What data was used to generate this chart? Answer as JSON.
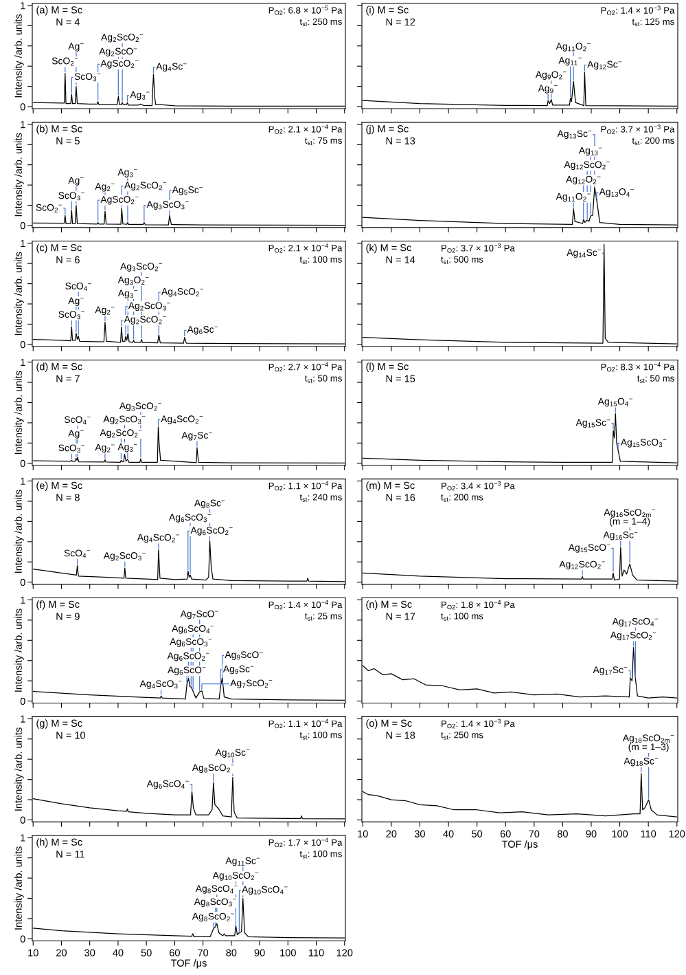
{
  "chart_data": [
    {
      "type": "line",
      "title": "(a) M = Sc",
      "subtitle": "N = 4",
      "ylabel": "Intensity /arb. units",
      "tick_labels": "y",
      "xlim": [
        9.7,
        120.3
      ],
      "ylim": [
        -0.02,
        1.02
      ],
      "xticks": [
        10,
        20,
        30,
        40,
        50,
        60,
        70,
        80,
        90,
        100,
        110,
        120
      ],
      "yticks": [
        0,
        {
          "value": 0.2,
          "label": null
        },
        {
          "value": 0.4,
          "label": null
        },
        {
          "value": 0.6,
          "label": null
        },
        {
          "value": 0.8,
          "label": null
        },
        1
      ],
      "annotations": [
        "P$_{O2}$: 6.8 × 10$^{−5}$ Pa",
        "t$_{st}$: 250 ms",
        {
          "text": "ScO$_{2}$$^{−}$",
          "x": 21.3,
          "y": 0.33
        },
        {
          "text": "ScO$_{3}$$^{−}$",
          "x": 23.6,
          "y": 0.12
        },
        {
          "text": "Ag$^{−}$",
          "x": 25.2,
          "y": 0.2
        },
        {
          "text": "AgScO$_{2}$$^{−}$",
          "x": 32.9,
          "y": 0.05
        },
        {
          "text": "Ag$_{2}$ScO$^{−}$",
          "x": 40.1,
          "y": 0.1
        },
        {
          "text": "Ag$_{2}$ScO$_{2}$$^{−}$",
          "x": 41.5,
          "y": 0.04
        },
        {
          "text": "Ag$_{3}$$^{−}$",
          "x": 43.3,
          "y": 0.04
        },
        {
          "text": "Ag$_{4}$Sc$^{−}$",
          "x": 52.5,
          "y": 0.32
        }
      ],
      "series": [
        {
          "color": "#000000",
          "x": [
            10,
            20,
            21.0,
            21.3,
            21.6,
            23.3,
            23.6,
            23.9,
            24.9,
            25.2,
            25.6,
            30,
            32.6,
            32.9,
            33.2,
            35,
            39.7,
            40.1,
            40.5,
            41.2,
            41.5,
            41.8,
            43.0,
            43.3,
            43.6,
            47,
            48,
            49,
            52.0,
            52.5,
            53.0,
            53.3,
            55,
            60,
            80,
            100,
            120
          ],
          "values": [
            0.04,
            0.035,
            0.035,
            0.33,
            0.03,
            0.03,
            0.12,
            0.03,
            0.03,
            0.2,
            0.03,
            0.025,
            0.025,
            0.05,
            0.02,
            0.02,
            0.02,
            0.1,
            0.02,
            0.02,
            0.04,
            0.02,
            0.02,
            0.04,
            0.015,
            0.015,
            0.025,
            0.012,
            0.01,
            0.32,
            0.08,
            0.02,
            0.02,
            0.008,
            0.005,
            0.005,
            0.004
          ]
        }
      ]
    },
    {
      "type": "line",
      "title": "(b) M = Sc",
      "subtitle": "N = 5",
      "ylabel": "Intensity /arb. units",
      "tick_labels": "y",
      "xlim": [
        9.7,
        120.3
      ],
      "ylim": [
        -0.02,
        1.02
      ],
      "xticks": [
        10,
        20,
        30,
        40,
        50,
        60,
        70,
        80,
        90,
        100,
        110,
        120
      ],
      "yticks": [
        0,
        {
          "value": 0.2,
          "label": null
        },
        {
          "value": 0.4,
          "label": null
        },
        {
          "value": 0.6,
          "label": null
        },
        {
          "value": 0.8,
          "label": null
        },
        1
      ],
      "annotations": [
        "P$_{O2}$: 2.1 × 10$^{−4}$ Pa",
        "t$_{st}$: 75 ms",
        {
          "text": "ScO$_{2}$$^{−}$",
          "x": 21.3,
          "y": 0.1
        },
        {
          "text": "ScO$_{3}$$^{−}$",
          "x": 23.6,
          "y": 0.15
        },
        {
          "text": "Ag$^{−}$",
          "x": 25.2,
          "y": 0.2
        },
        {
          "text": "AgScO$_{2}$$^{−}$",
          "x": 32.9,
          "y": 0.03
        },
        {
          "text": "Ag$_{2}$$^{−}$",
          "x": 35.4,
          "y": 0.14
        },
        {
          "text": "Ag$_{2}$ScO$_{2}$$^{−}$",
          "x": 41.3,
          "y": 0.17
        },
        {
          "text": "Ag$_{3}$$^{−}$",
          "x": 43.4,
          "y": 0.03
        },
        {
          "text": "Ag$_{3}$ScO$_{3}$$^{−}$",
          "x": 49.2,
          "y": 0.03
        },
        {
          "text": "Ag$_{5}$Sc$^{−}$",
          "x": 58.2,
          "y": 0.1
        }
      ],
      "series": [
        {
          "color": "#000000",
          "x": [
            10,
            20,
            21.0,
            21.3,
            21.6,
            23.3,
            23.6,
            23.9,
            24.9,
            25.2,
            25.6,
            32.6,
            32.9,
            33.2,
            35.1,
            35.4,
            35.8,
            41.0,
            41.3,
            41.7,
            43.1,
            43.4,
            43.7,
            48.9,
            49.2,
            49.6,
            57.8,
            58.2,
            58.8,
            70,
            120
          ],
          "values": [
            0.025,
            0.022,
            0.022,
            0.1,
            0.02,
            0.02,
            0.15,
            0.02,
            0.02,
            0.2,
            0.02,
            0.015,
            0.03,
            0.015,
            0.015,
            0.14,
            0.015,
            0.012,
            0.17,
            0.015,
            0.012,
            0.03,
            0.01,
            0.01,
            0.03,
            0.008,
            0.006,
            0.1,
            0.01,
            0.005,
            0.003
          ]
        }
      ]
    },
    {
      "type": "line",
      "title": "(c) M = Sc",
      "subtitle": "N = 6",
      "ylabel": "Intensity /arb. units",
      "tick_labels": "y",
      "xlim": [
        9.7,
        120.3
      ],
      "ylim": [
        -0.02,
        1.02
      ],
      "xticks": [
        10,
        20,
        30,
        40,
        50,
        60,
        70,
        80,
        90,
        100,
        110,
        120
      ],
      "yticks": [
        0,
        {
          "value": 0.2,
          "label": null
        },
        {
          "value": 0.4,
          "label": null
        },
        {
          "value": 0.6,
          "label": null
        },
        {
          "value": 0.8,
          "label": null
        },
        1
      ],
      "annotations": [
        "P$_{O2}$: 2.1 × 10$^{−4}$ Pa",
        "t$_{st}$: 100 ms",
        {
          "text": "ScO$_{3}$$^{−}$",
          "x": 23.6,
          "y": 0.175
        },
        {
          "text": "Ag$^{−}$",
          "x": 25.2,
          "y": 0.11
        },
        {
          "text": "ScO$_{4}$$^{−}$",
          "x": 26.0,
          "y": 0.08
        },
        {
          "text": "Ag$_{2}$$^{−}$",
          "x": 35.4,
          "y": 0.22
        },
        {
          "text": "Ag$_{2}$ScO$_{2}$$^{−}$",
          "x": 41.2,
          "y": 0.17
        },
        {
          "text": "Ag$_{2}$ScO$_{3}$$^{−}$",
          "x": 42.7,
          "y": 0.08
        },
        {
          "text": "Ag$_{3}$$^{−}$",
          "x": 43.5,
          "y": 0.11
        },
        {
          "text": "Ag$_{3}$O$_{2}$$^{−}$",
          "x": 45.5,
          "y": 0.04
        },
        {
          "text": "Ag$_{3}$ScO$_{2}$$^{−}$",
          "x": 48.3,
          "y": 0.05
        },
        {
          "text": "Ag$_{4}$ScO$_{2}$$^{−}$",
          "x": 54.4,
          "y": 0.095
        },
        {
          "text": "Ag$_{6}$Sc$^{−}$",
          "x": 63.5,
          "y": 0.07
        }
      ],
      "series": [
        {
          "color": "#000000",
          "x": [
            10,
            20,
            23.3,
            23.6,
            23.9,
            24.9,
            25.2,
            25.6,
            26.0,
            26.4,
            35.0,
            35.4,
            35.9,
            40.9,
            41.2,
            41.6,
            42.4,
            42.7,
            43.1,
            43.5,
            43.9,
            45.2,
            45.5,
            45.8,
            48.0,
            48.3,
            48.6,
            54.0,
            54.4,
            54.9,
            63.1,
            63.5,
            64.1,
            80,
            120
          ],
          "values": [
            0.05,
            0.04,
            0.035,
            0.175,
            0.04,
            0.04,
            0.11,
            0.05,
            0.08,
            0.03,
            0.025,
            0.22,
            0.03,
            0.02,
            0.17,
            0.03,
            0.03,
            0.08,
            0.04,
            0.11,
            0.025,
            0.02,
            0.04,
            0.02,
            0.02,
            0.05,
            0.018,
            0.015,
            0.095,
            0.015,
            0.012,
            0.07,
            0.012,
            0.008,
            0.005
          ]
        }
      ]
    },
    {
      "type": "line",
      "title": "(d) M = Sc",
      "subtitle": "N = 7",
      "ylabel": "Intensity /arb. units",
      "tick_labels": "y",
      "xlim": [
        9.7,
        120.3
      ],
      "ylim": [
        -0.02,
        1.02
      ],
      "xticks": [
        10,
        20,
        30,
        40,
        50,
        60,
        70,
        80,
        90,
        100,
        110,
        120
      ],
      "yticks": [
        0,
        {
          "value": 0.2,
          "label": null
        },
        {
          "value": 0.4,
          "label": null
        },
        {
          "value": 0.6,
          "label": null
        },
        {
          "value": 0.8,
          "label": null
        },
        1
      ],
      "annotations": [
        "P$_{O2}$: 2.7 × 10$^{−4}$ Pa",
        "t$_{st}$: 50 ms",
        {
          "text": "ScO$_{3}$$^{−}$",
          "x": 23.6,
          "y": 0.03
        },
        {
          "text": "Ag$^{−}$",
          "x": 25.2,
          "y": 0.05
        },
        {
          "text": "ScO$_{4}$$^{−}$",
          "x": 25.7,
          "y": 0.06
        },
        {
          "text": "Ag$_{2}$$^{−}$",
          "x": 35.4,
          "y": 0.035
        },
        {
          "text": "Ag$_{2}$ScO$_{2}$$^{−}$",
          "x": 41.1,
          "y": 0.03
        },
        {
          "text": "Ag$_{2}$ScO$_{3}$$^{−}$",
          "x": 42.3,
          "y": 0.09
        },
        {
          "text": "Ag$_{3}$$^{−}$",
          "x": 43.4,
          "y": 0.04
        },
        {
          "text": "Ag$_{3}$ScO$_{2}$$^{−}$",
          "x": 48.0,
          "y": 0.045
        },
        {
          "text": "Ag$_{4}$ScO$_{2}$$^{−}$",
          "x": 54.2,
          "y": 0.36
        },
        {
          "text": "Ag$_{7}$Sc$^{−}$",
          "x": 67.9,
          "y": 0.155
        }
      ],
      "series": [
        {
          "color": "#000000",
          "x": [
            10,
            23.3,
            23.6,
            23.9,
            24.9,
            25.2,
            25.5,
            25.7,
            26.1,
            35.1,
            35.4,
            35.7,
            40.8,
            41.1,
            41.5,
            42.0,
            42.3,
            42.8,
            43.4,
            43.8,
            47.7,
            48.0,
            48.3,
            53.9,
            54.2,
            54.5,
            55.0,
            67.6,
            67.9,
            68.4,
            80,
            120
          ],
          "values": [
            0.025,
            0.02,
            0.03,
            0.02,
            0.02,
            0.05,
            0.03,
            0.06,
            0.015,
            0.012,
            0.035,
            0.012,
            0.01,
            0.03,
            0.015,
            0.015,
            0.09,
            0.02,
            0.04,
            0.01,
            0.01,
            0.045,
            0.01,
            0.01,
            0.36,
            0.2,
            0.03,
            0.006,
            0.155,
            0.01,
            0.005,
            0.003
          ]
        }
      ]
    },
    {
      "type": "line",
      "title": "(e) M = Sc",
      "subtitle": "N = 8",
      "ylabel": "Intensity /arb. units",
      "tick_labels": "y",
      "xlim": [
        9.7,
        120.3
      ],
      "ylim": [
        -0.02,
        1.02
      ],
      "xticks": [
        10,
        20,
        30,
        40,
        50,
        60,
        70,
        80,
        90,
        100,
        110,
        120
      ],
      "yticks": [
        0,
        {
          "value": 0.2,
          "label": null
        },
        {
          "value": 0.4,
          "label": null
        },
        {
          "value": 0.6,
          "label": null
        },
        {
          "value": 0.8,
          "label": null
        },
        1
      ],
      "annotations": [
        "P$_{O2}$: 1.1 × 10$^{−4}$ Pa",
        "t$_{st}$: 240 ms",
        {
          "text": "ScO$_{4}$$^{−}$",
          "x": 25.6,
          "y": 0.165
        },
        {
          "text": "Ag$_{2}$ScO$_{3}$$^{−}$",
          "x": 42.4,
          "y": 0.14
        },
        {
          "text": "Ag$_{4}$ScO$_{2}$$^{−}$",
          "x": 54.3,
          "y": 0.32
        },
        {
          "text": "Ag$_{6}$ScO$_{2}$$^{−}$",
          "x": 64.7,
          "y": 0.11
        },
        {
          "text": "Ag$_{6}$ScO$_{3}$$^{−}$",
          "x": 65.5,
          "y": 0.07
        },
        {
          "text": "Ag$_{8}$Sc$^{−}$",
          "x": 72.4,
          "y": 0.41
        }
      ],
      "series": [
        {
          "color": "#000000",
          "x": [
            10,
            20,
            25.3,
            25.6,
            26.0,
            35,
            42.1,
            42.4,
            42.7,
            50,
            54.0,
            54.3,
            54.8,
            60,
            64.4,
            64.7,
            65.1,
            65.5,
            66.0,
            71,
            72.0,
            72.4,
            72.9,
            73.5,
            80,
            100,
            106.7,
            107,
            107.3,
            120
          ],
          "values": [
            0.13,
            0.09,
            0.07,
            0.165,
            0.06,
            0.05,
            0.04,
            0.14,
            0.04,
            0.03,
            0.025,
            0.32,
            0.04,
            0.025,
            0.03,
            0.11,
            0.05,
            0.07,
            0.03,
            0.02,
            0.05,
            0.41,
            0.15,
            0.03,
            0.015,
            0.01,
            0.01,
            0.04,
            0.01,
            0.005
          ]
        }
      ]
    },
    {
      "type": "line",
      "title": "(f) M = Sc",
      "subtitle": "N = 9",
      "ylabel": "Intensity /arb. units",
      "tick_labels": "y",
      "xlim": [
        9.7,
        120.3
      ],
      "ylim": [
        -0.02,
        1.02
      ],
      "xticks": [
        10,
        20,
        30,
        40,
        50,
        60,
        70,
        80,
        90,
        100,
        110,
        120
      ],
      "yticks": [
        0,
        {
          "value": 0.2,
          "label": null
        },
        {
          "value": 0.4,
          "label": null
        },
        {
          "value": 0.6,
          "label": null
        },
        {
          "value": 0.8,
          "label": null
        },
        1
      ],
      "annotations": [
        "P$_{O2}$: 1.4 × 10$^{−4}$ Pa",
        "t$_{st}$: 25 ms",
        {
          "text": "Ag$_{4}$ScO$_{3}$$^{−}$",
          "x": 55.2,
          "y": 0.05
        },
        {
          "text": "Ag$_{6}$ScO$^{−}$",
          "x": 64.3,
          "y": 0.16
        },
        {
          "text": "Ag$_{6}$ScO$_{2}$$^{−}$",
          "x": 64.9,
          "y": 0.225
        },
        {
          "text": "Ag$_{6}$ScO$_{3}$$^{−}$",
          "x": 65.8,
          "y": 0.14
        },
        {
          "text": "Ag$_{6}$ScO$_{4}$$^{−}$",
          "x": 66.5,
          "y": 0.095
        },
        {
          "text": "Ag$_{7}$ScO$^{−}$",
          "x": 68.8,
          "y": 0.09
        },
        {
          "text": "Ag$_{7}$ScO$_{2}$$^{−}$",
          "x": 69.6,
          "y": 0.1
        },
        {
          "text": "Ag$_{9}$Sc$^{−}$",
          "x": 76.2,
          "y": 0.14
        },
        {
          "text": "Ag$_{9}$ScO$^{−}$",
          "x": 76.8,
          "y": 0.23
        }
      ],
      "series": [
        {
          "color": "#000000",
          "x": [
            10,
            30,
            50,
            54.9,
            55.2,
            55.6,
            63.8,
            64.3,
            64.9,
            65.4,
            65.8,
            66.5,
            67.5,
            68.8,
            69.6,
            70.3,
            75.7,
            76.2,
            76.8,
            77.5,
            80,
            100,
            120
          ],
          "values": [
            0.095,
            0.06,
            0.035,
            0.03,
            0.05,
            0.03,
            0.02,
            0.16,
            0.225,
            0.14,
            0.14,
            0.095,
            0.03,
            0.09,
            0.1,
            0.025,
            0.02,
            0.14,
            0.23,
            0.04,
            0.02,
            0.012,
            0.008
          ]
        }
      ]
    },
    {
      "type": "line",
      "title": "(g) M = Sc",
      "subtitle": "N = 10",
      "ylabel": "Intensity /arb. units",
      "tick_labels": "y",
      "xlim": [
        9.7,
        120.3
      ],
      "ylim": [
        -0.02,
        1.02
      ],
      "xticks": [
        10,
        20,
        30,
        40,
        50,
        60,
        70,
        80,
        90,
        100,
        110,
        120
      ],
      "yticks": [
        0,
        {
          "value": 0.2,
          "label": null
        },
        {
          "value": 0.4,
          "label": null
        },
        {
          "value": 0.6,
          "label": null
        },
        {
          "value": 0.8,
          "label": null
        },
        1
      ],
      "annotations": [
        "P$_{O2}$: 1.1 × 10$^{−4}$ Pa",
        "t$_{st}$: 100 ms",
        {
          "text": "Ag$_{6}$ScO$_{4}$$^{−}$",
          "x": 66.1,
          "y": 0.28
        },
        {
          "text": "Ag$_{8}$ScO$_{2}$$^{−}$",
          "x": 73.7,
          "y": 0.37
        },
        {
          "text": "Ag$_{10}$Sc$^{−}$",
          "x": 80.5,
          "y": 0.42
        }
      ],
      "series": [
        {
          "color": "#000000",
          "x": [
            10,
            20,
            30,
            40,
            43,
            43.3,
            43.6,
            50,
            60,
            65.6,
            66.1,
            66.6,
            67.5,
            72,
            73.2,
            73.7,
            74.2,
            75.5,
            77,
            80.0,
            80.5,
            81.0,
            82,
            100,
            104.5,
            104.8,
            105.1,
            120
          ],
          "values": [
            0.21,
            0.16,
            0.12,
            0.09,
            0.085,
            0.11,
            0.08,
            0.065,
            0.05,
            0.05,
            0.28,
            0.12,
            0.05,
            0.05,
            0.1,
            0.37,
            0.15,
            0.11,
            0.04,
            0.03,
            0.42,
            0.08,
            0.02,
            0.015,
            0.015,
            0.04,
            0.012,
            0.01
          ]
        }
      ]
    },
    {
      "type": "line",
      "title": "(h) M = Sc",
      "subtitle": "N = 11",
      "xlabel": "TOF /μs",
      "ylabel": "Intensity /arb. units",
      "xlim": [
        9.7,
        120.3
      ],
      "ylim": [
        -0.02,
        1.02
      ],
      "xticks": [
        10,
        20,
        30,
        40,
        50,
        60,
        70,
        80,
        90,
        100,
        110,
        120
      ],
      "yticks": [
        0,
        {
          "value": 0.2,
          "label": null
        },
        {
          "value": 0.4,
          "label": null
        },
        {
          "value": 0.6,
          "label": null
        },
        {
          "value": 0.8,
          "label": null
        },
        1
      ],
      "annotations": [
        "P$_{O2}$: 1.7 × 10$^{−4}$ Pa",
        "t$_{st}$: 100 ms",
        {
          "text": "Ag$_{8}$ScO$_{2}$$^{−}$",
          "x": 73.7,
          "y": 0.1
        },
        {
          "text": "Ag$_{8}$ScO$_{3}$$^{−}$",
          "x": 74.4,
          "y": 0.12
        },
        {
          "text": "Ag$_{8}$ScO$_{4}$$^{−}$",
          "x": 74.9,
          "y": 0.15
        },
        {
          "text": "Ag$_{10}$ScO$_{2}$$^{−}$",
          "x": 81.6,
          "y": 0.13
        },
        {
          "text": "Ag$_{10}$ScO$_{4}$$^{−}$",
          "x": 82.8,
          "y": 0.06
        },
        {
          "text": "Ag$_{11}$Sc$^{−}$",
          "x": 84.1,
          "y": 0.4
        }
      ],
      "series": [
        {
          "color": "#000000",
          "x": [
            10,
            20,
            40,
            60,
            66,
            66.4,
            66.8,
            72.5,
            73.7,
            74.4,
            74.9,
            75.6,
            77.0,
            77.5,
            78,
            81.2,
            81.6,
            82.1,
            82.8,
            83.6,
            84.1,
            84.7,
            86,
            100,
            120
          ],
          "values": [
            0.105,
            0.08,
            0.05,
            0.03,
            0.025,
            0.05,
            0.02,
            0.02,
            0.1,
            0.12,
            0.15,
            0.06,
            0.03,
            0.05,
            0.03,
            0.03,
            0.13,
            0.04,
            0.06,
            0.07,
            0.4,
            0.06,
            0.02,
            0.012,
            0.008
          ]
        }
      ]
    },
    {
      "type": "line",
      "title": "(i) M = Sc",
      "subtitle": "N = 12",
      "tick_labels": false,
      "xlim": [
        9.7,
        120.3
      ],
      "ylim": [
        -0.02,
        1.02
      ],
      "xticks": [
        10,
        20,
        30,
        40,
        50,
        60,
        70,
        80,
        90,
        100,
        110,
        120
      ],
      "yticks": [
        0,
        {
          "value": 0.2,
          "label": null
        },
        {
          "value": 0.4,
          "label": null
        },
        {
          "value": 0.6,
          "label": null
        },
        {
          "value": 0.8,
          "label": null
        },
        1
      ],
      "annotations": [
        "P$_{O2}$: 1.4 × 10$^{−3}$ Pa",
        "t$_{st}$: 125 ms",
        {
          "text": "Ag$_{9}$$^{−}$",
          "x": 74.9,
          "y": 0.06
        },
        {
          "text": "Ag$_{9}$O$_{2}$$^{−}$",
          "x": 76.0,
          "y": 0.07
        },
        {
          "text": "Ag$_{11}$$^{−}$",
          "x": 82.7,
          "y": 0.085
        },
        {
          "text": "Ag$_{11}$O$_{2}$$^{−}$",
          "x": 83.8,
          "y": 0.25
        },
        {
          "text": "Ag$_{12}$Sc$^{−}$",
          "x": 87.7,
          "y": 0.34
        }
      ],
      "series": [
        {
          "color": "#000000",
          "x": [
            10,
            30,
            60,
            74.6,
            74.9,
            75.4,
            76.0,
            76.5,
            82.4,
            82.7,
            83.1,
            83.8,
            84.5,
            87.4,
            87.7,
            88.1,
            100,
            120
          ],
          "values": [
            0.06,
            0.03,
            0.012,
            0.01,
            0.06,
            0.03,
            0.07,
            0.015,
            0.015,
            0.085,
            0.05,
            0.25,
            0.04,
            0.01,
            0.34,
            0.01,
            0.008,
            0.005
          ]
        }
      ]
    },
    {
      "type": "line",
      "title": "(j) M = Sc",
      "subtitle": "N = 13",
      "tick_labels": false,
      "xlim": [
        9.7,
        120.3
      ],
      "ylim": [
        -0.02,
        1.02
      ],
      "xticks": [
        10,
        20,
        30,
        40,
        50,
        60,
        70,
        80,
        90,
        100,
        110,
        120
      ],
      "yticks": [
        0,
        {
          "value": 0.2,
          "label": null
        },
        {
          "value": 0.4,
          "label": null
        },
        {
          "value": 0.6,
          "label": null
        },
        {
          "value": 0.8,
          "label": null
        },
        1
      ],
      "annotations": [
        "P$_{O2}$: 3.7 × 10$^{−3}$ Pa",
        "t$_{st}$: 200 ms",
        {
          "text": "Ag$_{11}$O$_{2}$$^{−}$",
          "x": 83.8,
          "y": 0.165
        },
        {
          "text": "Ag$_{12}$O$_{2}$$^{−}$",
          "x": 87.3,
          "y": 0.06
        },
        {
          "text": "Ag$_{12}$ScO$_{2}$$^{−}$",
          "x": 88.6,
          "y": 0.055
        },
        {
          "text": "Ag$_{13}$$^{−}$",
          "x": 89.8,
          "y": 0.095
        },
        {
          "text": "Ag$_{13}$Sc$^{−}$",
          "x": 91.2,
          "y": 0.38
        },
        {
          "text": "Ag$_{13}$O$_{4}$$^{−}$",
          "x": 91.9,
          "y": 0.255
        }
      ],
      "series": [
        {
          "color": "#000000",
          "x": [
            10,
            30,
            60,
            83.4,
            83.8,
            84.3,
            87.0,
            87.3,
            87.8,
            88.6,
            89.2,
            89.8,
            90.5,
            91.2,
            91.9,
            93,
            100,
            120
          ],
          "values": [
            0.08,
            0.05,
            0.02,
            0.01,
            0.165,
            0.04,
            0.02,
            0.06,
            0.03,
            0.055,
            0.04,
            0.095,
            0.1,
            0.38,
            0.255,
            0.03,
            0.01,
            0.005
          ]
        }
      ]
    },
    {
      "type": "line",
      "title": "(k) M = Sc",
      "subtitle": "N = 14",
      "tick_labels": false,
      "xlim": [
        9.7,
        120.3
      ],
      "ylim": [
        -0.02,
        1.02
      ],
      "xticks": [
        10,
        20,
        30,
        40,
        50,
        60,
        70,
        80,
        90,
        100,
        110,
        120
      ],
      "yticks": [
        0,
        {
          "value": 0.2,
          "label": null
        },
        {
          "value": 0.4,
          "label": null
        },
        {
          "value": 0.6,
          "label": null
        },
        {
          "value": 0.8,
          "label": null
        },
        1
      ],
      "annotations": [
        "P$_{O2}$: 3.7 × 10$^{−3}$ Pa",
        "t$_{st}$: 500 ms",
        {
          "text": "Ag$_{14}$Sc$^{−}$",
          "x": 94.5,
          "y": 0.99
        }
      ],
      "series": [
        {
          "color": "#000000",
          "x": [
            10,
            30,
            60,
            94.1,
            94.5,
            94.9,
            96,
            120
          ],
          "values": [
            0.07,
            0.045,
            0.02,
            0.012,
            0.99,
            0.06,
            0.02,
            0.005
          ]
        }
      ]
    },
    {
      "type": "line",
      "title": "(l) M = Sc",
      "subtitle": "N = 15",
      "tick_labels": false,
      "xlim": [
        9.7,
        120.3
      ],
      "ylim": [
        -0.02,
        1.02
      ],
      "xticks": [
        10,
        20,
        30,
        40,
        50,
        60,
        70,
        80,
        90,
        100,
        110,
        120
      ],
      "yticks": [
        0,
        {
          "value": 0.2,
          "label": null
        },
        {
          "value": 0.4,
          "label": null
        },
        {
          "value": 0.6,
          "label": null
        },
        {
          "value": 0.8,
          "label": null
        },
        1
      ],
      "annotations": [
        "P$_{O2}$: 8.3 × 10$^{−4}$ Pa",
        "t$_{st}$: 50 ms",
        {
          "text": "Ag$_{15}$Sc$^{−}$",
          "x": 97.7,
          "y": 0.325
        },
        {
          "text": "Ag$_{15}$O$_{4}$$^{−}$",
          "x": 98.5,
          "y": 0.49
        },
        {
          "text": "Ag$_{15}$ScO$_{3}$$^{−}$",
          "x": 99.4,
          "y": 0.13
        }
      ],
      "series": [
        {
          "color": "#000000",
          "x": [
            10,
            30,
            60,
            80,
            97.4,
            97.7,
            98.1,
            98.5,
            98.9,
            99.4,
            100.2,
            120
          ],
          "values": [
            0.05,
            0.03,
            0.015,
            0.01,
            0.01,
            0.325,
            0.25,
            0.49,
            0.2,
            0.13,
            0.02,
            0.005
          ]
        }
      ]
    },
    {
      "type": "line",
      "title": "(m) M = Sc",
      "subtitle": "N = 16",
      "tick_labels": false,
      "xlim": [
        9.7,
        120.3
      ],
      "ylim": [
        -0.02,
        1.02
      ],
      "xticks": [
        10,
        20,
        30,
        40,
        50,
        60,
        70,
        80,
        90,
        100,
        110,
        120
      ],
      "yticks": [
        0,
        {
          "value": 0.2,
          "label": null
        },
        {
          "value": 0.4,
          "label": null
        },
        {
          "value": 0.6,
          "label": null
        },
        {
          "value": 0.8,
          "label": null
        },
        1
      ],
      "annotations": [
        "P$_{O2}$: 3.4 × 10$^{−3}$ Pa",
        "t$_{st}$: 200 ms",
        {
          "text": "Ag$_{12}$ScO$_{2}$$^{−}$",
          "x": 86.9,
          "y": 0.055
        },
        {
          "text": "Ag$_{15}$ScO$^{−}$",
          "x": 97.7,
          "y": 0.09
        },
        {
          "text": "Ag$_{16}$Sc$^{−}$",
          "x": 100.3,
          "y": 0.345
        },
        {
          "text": "Ag$_{16}$ScO$_{2m}$$^{−}$\n(m = 1–4)",
          "x": 103.5,
          "y": 0.18
        }
      ],
      "series": [
        {
          "color": "#000000",
          "x": [
            10,
            30,
            60,
            86.6,
            86.9,
            87.2,
            97.3,
            97.7,
            98.1,
            99.9,
            100.3,
            100.8,
            101.5,
            102.4,
            103.5,
            104.5,
            106,
            120
          ],
          "values": [
            0.09,
            0.06,
            0.035,
            0.03,
            0.055,
            0.03,
            0.03,
            0.09,
            0.02,
            0.03,
            0.345,
            0.06,
            0.12,
            0.08,
            0.18,
            0.07,
            0.02,
            0.01
          ]
        }
      ]
    },
    {
      "type": "line",
      "title": "(n) M = Sc",
      "subtitle": "N = 17",
      "tick_labels": false,
      "xlim": [
        9.7,
        120.3
      ],
      "ylim": [
        -0.02,
        1.02
      ],
      "xticks": [
        10,
        20,
        30,
        40,
        50,
        60,
        70,
        80,
        90,
        100,
        110,
        120
      ],
      "yticks": [
        0,
        {
          "value": 0.2,
          "label": null
        },
        {
          "value": 0.4,
          "label": null
        },
        {
          "value": 0.6,
          "label": null
        },
        {
          "value": 0.8,
          "label": null
        },
        1
      ],
      "annotations": [
        "P$_{O2}$: 1.8 × 10$^{−4}$ Pa",
        "t$_{st}$: 100 ms",
        {
          "text": "Ag$_{17}$Sc$^{−}$",
          "x": 103.7,
          "y": 0.23
        },
        {
          "text": "Ag$_{17}$ScO$_{2}$$^{−}$",
          "x": 104.8,
          "y": 0.53
        },
        {
          "text": "Ag$_{17}$ScO$_{4}$$^{−}$",
          "x": 105.5,
          "y": 0.215
        }
      ],
      "series": [
        {
          "color": "#000000",
          "x": [
            10,
            12,
            14,
            17,
            20,
            24,
            28,
            32,
            38,
            44,
            50,
            56,
            62,
            70,
            78,
            86,
            95,
            103.3,
            103.7,
            104.3,
            104.8,
            105.5,
            106.2,
            110,
            115,
            120
          ],
          "values": [
            0.35,
            0.3,
            0.32,
            0.26,
            0.27,
            0.21,
            0.22,
            0.16,
            0.15,
            0.11,
            0.12,
            0.08,
            0.09,
            0.06,
            0.07,
            0.04,
            0.05,
            0.04,
            0.23,
            0.2,
            0.53,
            0.215,
            0.05,
            0.03,
            0.04,
            0.03
          ]
        }
      ]
    },
    {
      "type": "line",
      "title": "(o) M = Sc",
      "subtitle": "N = 18",
      "xlabel": "TOF /μs",
      "tick_labels": "x",
      "xlim": [
        9.7,
        120.3
      ],
      "ylim": [
        -0.02,
        1.02
      ],
      "xticks": [
        10,
        20,
        30,
        40,
        50,
        60,
        70,
        80,
        90,
        100,
        110,
        120
      ],
      "yticks": [
        0,
        {
          "value": 0.2,
          "label": null
        },
        {
          "value": 0.4,
          "label": null
        },
        {
          "value": 0.6,
          "label": null
        },
        {
          "value": 0.8,
          "label": null
        },
        1
      ],
      "annotations": [
        "P$_{O2}$: 1.4 × 10$^{−3}$ Pa",
        "t$_{st}$: 250 ms",
        {
          "text": "Ag$_{18}$Sc$^{−}$",
          "x": 107.5,
          "y": 0.46
        },
        {
          "text": "Ag$_{18}$ScO$_{2m}$$^{−}$\n(m = 1–3)",
          "x": 110.1,
          "y": 0.2
        }
      ],
      "series": [
        {
          "color": "#000000",
          "x": [
            10,
            12,
            15,
            20,
            25,
            30,
            36,
            42,
            50,
            58,
            66,
            75,
            85,
            95,
            105,
            107.1,
            107.5,
            108.0,
            108.8,
            110.1,
            111.0,
            113,
            120
          ],
          "values": [
            0.28,
            0.25,
            0.24,
            0.2,
            0.19,
            0.15,
            0.14,
            0.1,
            0.1,
            0.07,
            0.08,
            0.05,
            0.06,
            0.04,
            0.06,
            0.06,
            0.46,
            0.1,
            0.12,
            0.2,
            0.1,
            0.05,
            0.03
          ]
        }
      ]
    }
  ]
}
